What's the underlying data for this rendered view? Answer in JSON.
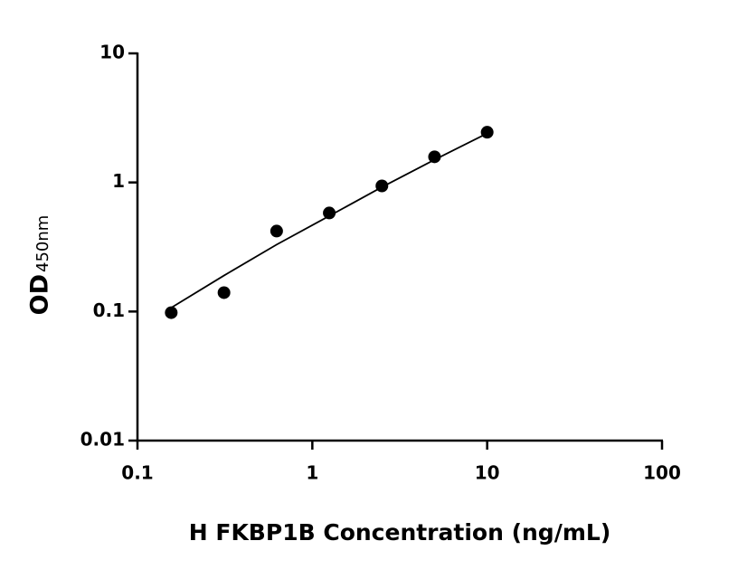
{
  "chart_data": {
    "type": "scatter",
    "x_label": "H FKBP1B Concentration (ng/mL)",
    "y_label": "OD",
    "y_label_subscript": "450nm",
    "x": [
      0.156,
      0.3125,
      0.625,
      1.25,
      2.5,
      5,
      10
    ],
    "values": [
      0.098,
      0.14,
      0.42,
      0.58,
      0.94,
      1.58,
      2.45
    ],
    "color": "#000000",
    "fit": {
      "x": [
        0.156,
        0.3125,
        0.625,
        1.25,
        2.5,
        5,
        10
      ],
      "values": [
        0.107,
        0.19,
        0.33,
        0.55,
        0.92,
        1.5,
        2.4
      ]
    },
    "xlim": [
      0.1,
      100
    ],
    "xticks": [
      0.1,
      1,
      10,
      100
    ],
    "ylim": [
      0.01,
      10
    ],
    "yticks": [
      0.01,
      0.1,
      1,
      10
    ],
    "xscale": "log",
    "yscale": "log",
    "grid": false
  }
}
